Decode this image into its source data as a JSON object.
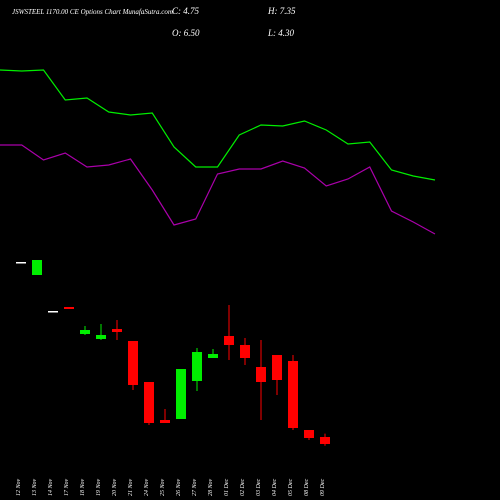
{
  "chart_data": [
    {
      "type": "line",
      "ylim": [
        0,
        105
      ],
      "series": [
        {
          "color": "#00ee00",
          "values": [
            90,
            89.5,
            90,
            75,
            76,
            69,
            67.5,
            68.5,
            51.5,
            41.5,
            41.5,
            57.5,
            62.5,
            62,
            64.5,
            60,
            53,
            54,
            40,
            37,
            35
          ]
        },
        {
          "color": "#aa00aa",
          "values": [
            52.5,
            52.5,
            45,
            48.5,
            41.5,
            42.5,
            45.5,
            30,
            12.5,
            15.5,
            38,
            40.5,
            40.5,
            44.5,
            41,
            32,
            35.5,
            41.5,
            19.5,
            14,
            8
          ]
        }
      ]
    },
    {
      "type": "candlestick",
      "title": "JSWSTEEL 1170.00 CE Options Chart MunafaSutra.com",
      "annotations": [
        "C: 4.75",
        "H: 7.35",
        "O: 6.50",
        "L: 4.30"
      ],
      "categories": [
        "12 Nov",
        "13 Nov",
        "14 Nov",
        "17 Nov",
        "18 Nov",
        "19 Nov",
        "20 Nov",
        "21 Nov",
        "24 Nov",
        "25 Nov",
        "26 Nov",
        "27 Nov",
        "28 Nov",
        "01 Dec",
        "02 Dec",
        "03 Dec",
        "04 Dec",
        "05 Dec",
        "08 Dec",
        "09 Dec"
      ],
      "open": [
        50.25,
        47,
        38,
        39,
        32.25,
        31,
        33.5,
        30.5,
        20.25,
        10.75,
        11,
        20.5,
        26.25,
        31.75,
        29.5,
        24,
        27,
        25.5,
        8.25,
        6.5
      ],
      "high": [
        50.25,
        50.75,
        38,
        39,
        34.25,
        34.75,
        35.75,
        30.5,
        20.25,
        13.5,
        23.5,
        28.75,
        28.5,
        39.5,
        31.25,
        30.75,
        27,
        27,
        8.25,
        7.35
      ],
      "low": [
        50.25,
        47,
        38,
        38.5,
        32,
        30.75,
        30.75,
        18.25,
        9.5,
        10,
        11,
        18,
        26.25,
        25.75,
        24.5,
        10.75,
        17,
        8.25,
        5.75,
        4.3
      ],
      "close": [
        50.25,
        50.75,
        38,
        38.5,
        33.25,
        32,
        32.75,
        19.5,
        10,
        10,
        23.5,
        27.75,
        27.25,
        29.5,
        26.25,
        20.25,
        20.75,
        8.75,
        6.25,
        4.75
      ],
      "up_color": "#00ee00",
      "down_color": "#ff0000",
      "flat_color": "#ffffff",
      "ylim": [
        0,
        70
      ]
    }
  ]
}
